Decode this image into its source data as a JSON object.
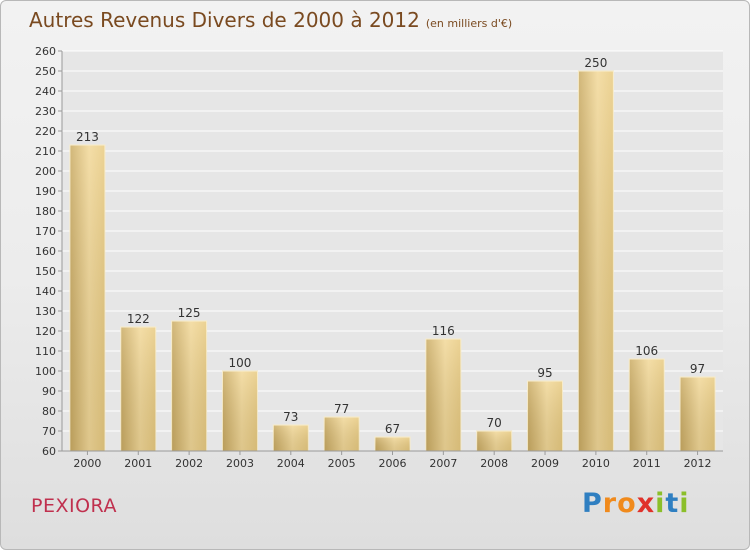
{
  "title": "Autres Revenus Divers de 2000 à 2012",
  "subtitle": "(en milliers d'€)",
  "commune": "PEXIORA",
  "brand": {
    "letters": [
      "P",
      "r",
      "o",
      "x",
      "i",
      "t",
      "i"
    ],
    "colors": [
      "#2f7fc1",
      "#f08a1c",
      "#f08a1c",
      "#e0322b",
      "#8bbf2a",
      "#2f7fc1",
      "#8bbf2a"
    ]
  },
  "chart_data": {
    "type": "bar",
    "categories": [
      "2000",
      "2001",
      "2002",
      "2003",
      "2004",
      "2005",
      "2006",
      "2007",
      "2008",
      "2009",
      "2010",
      "2011",
      "2012"
    ],
    "values": [
      213,
      122,
      125,
      100,
      73,
      77,
      67,
      116,
      70,
      95,
      250,
      106,
      97
    ],
    "data_labels": [
      "213",
      "122",
      "125",
      "100",
      "73",
      "77",
      "67",
      "116",
      "70",
      "95",
      "250",
      "106",
      "97"
    ],
    "ylim": [
      60,
      260
    ],
    "ytick_step": 10,
    "grid": true,
    "bar_color": "#e2c47c"
  }
}
